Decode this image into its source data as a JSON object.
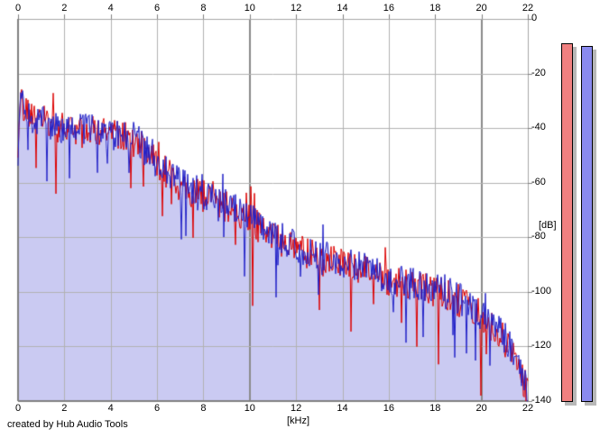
{
  "footer": {
    "credit": "created by Hub Audio Tools"
  },
  "chart_data": {
    "type": "area",
    "title": "",
    "description": "Audio frequency spectrum, two overlaid noisy channel traces (red and blue) with light lavender area fill under the blue trace",
    "x_axis": {
      "label": "[kHz]",
      "min": 0,
      "max": 22,
      "ticks": [
        0,
        2,
        4,
        6,
        8,
        10,
        12,
        14,
        16,
        18,
        20,
        22
      ],
      "major_gridlines": [
        10,
        20
      ],
      "grid": true
    },
    "y_axis": {
      "label": "[dB]",
      "min": -140,
      "max": 0,
      "ticks": [
        0,
        -20,
        -40,
        -60,
        -80,
        -100,
        -120,
        -140
      ],
      "grid": true
    },
    "series": [
      {
        "name": "channel-red",
        "type": "line",
        "color": "#dd0000",
        "envelope_khz": [
          0,
          0.1,
          0.2,
          0.4,
          0.7,
          1.0,
          1.5,
          2.0,
          2.5,
          3.0,
          3.5,
          4.0,
          4.5,
          5.0,
          5.5,
          6.0,
          6.5,
          7.0,
          7.5,
          8.0,
          9.0,
          10.0,
          11.0,
          12.0,
          13.0,
          14.0,
          15.0,
          16.0,
          17.0,
          18.0,
          19.0,
          20.0,
          20.5,
          21.0,
          21.5,
          22.0
        ],
        "envelope_db": [
          -52,
          -26,
          -31,
          -33,
          -37,
          -37,
          -40,
          -39,
          -42,
          -41,
          -41,
          -43,
          -42,
          -45,
          -47,
          -52,
          -57,
          -61,
          -63,
          -65,
          -69,
          -74,
          -80,
          -84,
          -88,
          -90,
          -92,
          -96,
          -98,
          -100,
          -103,
          -109,
          -113,
          -118,
          -125,
          -137
        ]
      },
      {
        "name": "channel-blue",
        "type": "area",
        "color": "#2121c8",
        "fill_color": "#cacaf2",
        "envelope_khz": [
          0,
          0.1,
          0.2,
          0.4,
          0.7,
          1.0,
          1.5,
          2.0,
          2.5,
          3.0,
          3.5,
          4.0,
          4.5,
          5.0,
          5.5,
          6.0,
          6.5,
          7.0,
          7.5,
          8.0,
          9.0,
          10.0,
          11.0,
          12.0,
          13.0,
          14.0,
          15.0,
          16.0,
          17.0,
          18.0,
          19.0,
          20.0,
          20.5,
          21.0,
          21.5,
          22.0
        ],
        "envelope_db": [
          -50,
          -27,
          -30,
          -34,
          -36,
          -38,
          -39,
          -40,
          -41,
          -40,
          -42,
          -42,
          -43,
          -44,
          -46,
          -51,
          -56,
          -60,
          -62,
          -64,
          -68,
          -73,
          -79,
          -83,
          -87,
          -89,
          -91,
          -95,
          -97,
          -99,
          -102,
          -108,
          -112,
          -117,
          -124,
          -136
        ]
      }
    ],
    "noise_db": 6,
    "legend": null
  },
  "meters": {
    "left": {
      "label": "red-level-meter",
      "color": "#f08080",
      "value_db": -9
    },
    "right": {
      "label": "blue-level-meter",
      "color": "#8a8aee",
      "value_db": -10
    },
    "shadow_color": "#b8b8b8",
    "range_db": [
      0,
      -140
    ]
  },
  "colors": {
    "background": "#ffffff",
    "grid_minor": "#b2b2b2",
    "grid_major": "#8a8a8a",
    "axis_dark": "#808080",
    "axis_light": "#a6a6a6",
    "text": "#000000"
  }
}
